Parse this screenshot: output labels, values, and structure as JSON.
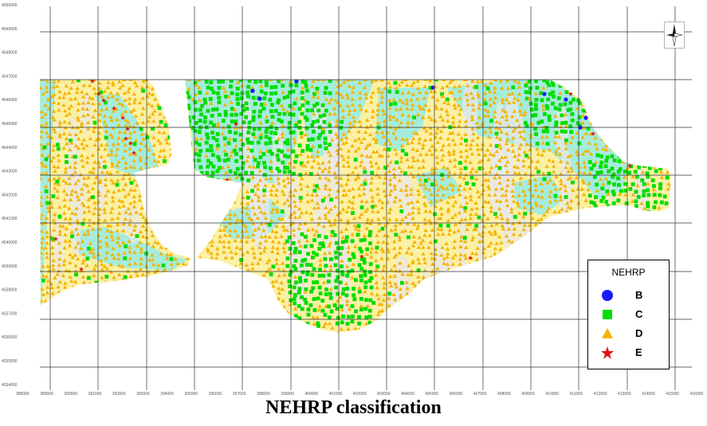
{
  "map": {
    "y_ticks": [
      "4550000",
      "4549000",
      "4548000",
      "4547000",
      "4546000",
      "4545000",
      "4544000",
      "4543000",
      "4542000",
      "4541000",
      "4540000",
      "4539000",
      "4538000",
      "4537000",
      "4536000",
      "4535000",
      "4534000"
    ],
    "x_ticks": [
      "388000",
      "389000",
      "390000",
      "391000",
      "392000",
      "393000",
      "394000",
      "395000",
      "396000",
      "397000",
      "398000",
      "399000",
      "400000",
      "401000",
      "402000",
      "403000",
      "404000",
      "405000",
      "406000",
      "407000",
      "408000",
      "409000",
      "410000",
      "411000",
      "412000",
      "413000",
      "414000",
      "415000",
      "416000"
    ],
    "colors": {
      "zone_cyan": "#a6ecdc",
      "zone_yellow": "#fbf0a4",
      "zone_grey": "#e8e8e8",
      "class_B": "#1a1aff",
      "class_C": "#00dd00",
      "class_D": "#f5b400",
      "class_E": "#e01010"
    }
  },
  "legend": {
    "title": "NEHRP",
    "items": [
      {
        "label": "B",
        "symbol": "circle-icon",
        "color": "#1a1aff"
      },
      {
        "label": "C",
        "symbol": "square-icon",
        "color": "#00dd00"
      },
      {
        "label": "D",
        "symbol": "triangle-icon",
        "color": "#f5b400"
      },
      {
        "label": "E",
        "symbol": "star-icon",
        "color": "#e01010"
      }
    ]
  },
  "caption": "NEHRP classification"
}
